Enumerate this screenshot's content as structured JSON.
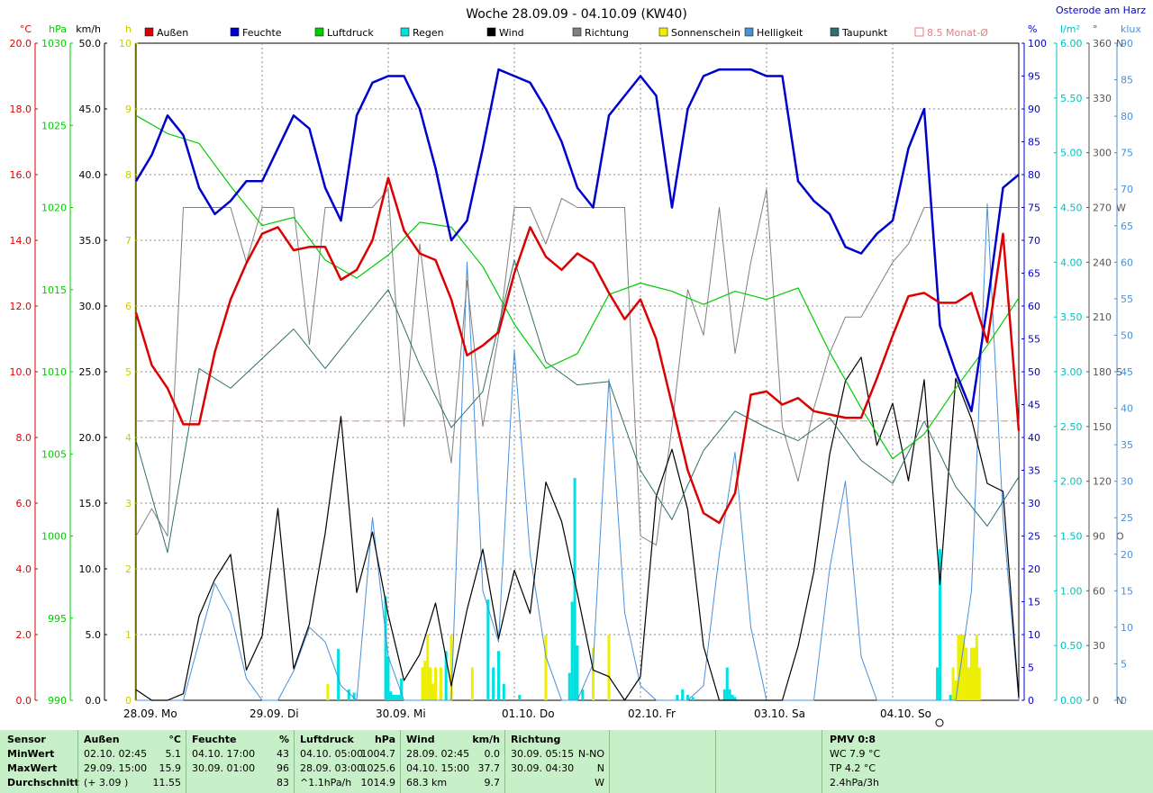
{
  "title": "Woche 28.09.09 - 04.10.09 (KW40)",
  "station": "Osterode am Harz",
  "legend": [
    {
      "label": "Außen",
      "color": "#dd0000"
    },
    {
      "label": "Feuchte",
      "color": "#0000cc"
    },
    {
      "label": "Luftdruck",
      "color": "#00cc00"
    },
    {
      "label": "Regen",
      "color": "#00e0e0"
    },
    {
      "label": "Wind",
      "color": "#000000"
    },
    {
      "label": "Richtung",
      "color": "#808080"
    },
    {
      "label": "Sonnenschein",
      "color": "#eeee00"
    },
    {
      "label": "Helligkeit",
      "color": "#4a90d8"
    },
    {
      "label": "Taupunkt",
      "color": "#2f6f6f"
    },
    {
      "label": "8.5 Monat-Ø",
      "color": "#e08080"
    }
  ],
  "units": {
    "temp": "°C",
    "press": "hPa",
    "wind": "km/h",
    "sun": "h",
    "hum": "%",
    "rain": "l/m²",
    "dir": "°",
    "lux": "klux"
  },
  "chart_data": {
    "type": "line",
    "days": [
      "28.09.  Mo",
      "29.09.  Di",
      "30.09.  Mi",
      "01.10.  Do",
      "02.10.  Fr",
      "03.10.  Sa",
      "04.10.  So"
    ],
    "axes": {
      "temp": {
        "min": 0,
        "max": 20,
        "ticks": [
          "0.0",
          "2.0",
          "4.0",
          "6.0",
          "8.0",
          "10.0",
          "12.0",
          "14.0",
          "16.0",
          "18.0",
          "20.0"
        ]
      },
      "press": {
        "min": 990,
        "max": 1030,
        "ticks": [
          "990",
          "995",
          "1000",
          "1005",
          "1010",
          "1015",
          "1020",
          "1025",
          "1030"
        ]
      },
      "wind": {
        "min": 0,
        "max": 50,
        "ticks": [
          "0.0",
          "5.0",
          "10.0",
          "15.0",
          "20.0",
          "25.0",
          "30.0",
          "35.0",
          "40.0",
          "45.0",
          "50.0"
        ]
      },
      "sun": {
        "min": 0,
        "max": 10,
        "ticks": [
          "0",
          "1",
          "2",
          "3",
          "4",
          "5",
          "6",
          "7",
          "8",
          "9",
          "10"
        ]
      },
      "hum": {
        "min": 0,
        "max": 100,
        "ticks": [
          "0",
          "5",
          "10",
          "15",
          "20",
          "25",
          "30",
          "35",
          "40",
          "45",
          "50",
          "55",
          "60",
          "65",
          "70",
          "75",
          "80",
          "85",
          "90",
          "95",
          "100"
        ]
      },
      "rain": {
        "min": 0,
        "max": 6,
        "ticks": [
          "0.00",
          "0.50",
          "1.00",
          "1.50",
          "2.00",
          "2.50",
          "3.00",
          "3.50",
          "4.00",
          "4.50",
          "5.00",
          "5.50",
          "6.00"
        ]
      },
      "dir": {
        "min": 0,
        "max": 360,
        "ticks": [
          "0",
          "30",
          "60",
          "90",
          "120",
          "150",
          "180",
          "210",
          "240",
          "270",
          "300",
          "330",
          "360"
        ],
        "labels": {
          "0": "N",
          "90": "O",
          "180": "S",
          "270": "W",
          "360": "N"
        }
      },
      "lux": {
        "min": 0,
        "max": 90,
        "ticks": [
          "0",
          "5",
          "10",
          "15",
          "20",
          "25",
          "30",
          "35",
          "40",
          "45",
          "50",
          "55",
          "60",
          "65",
          "70",
          "75",
          "80",
          "85",
          "90"
        ]
      }
    },
    "monthly_avg_temp": 8.5,
    "series": [
      {
        "name": "Außen",
        "axis": "temp",
        "t": [
          0,
          3,
          6,
          9,
          12,
          15,
          18,
          21,
          24,
          27,
          30,
          33,
          36,
          39,
          42,
          45,
          48,
          51,
          54,
          57,
          60,
          63,
          66,
          69,
          72,
          75,
          78,
          81,
          84,
          87,
          90,
          93,
          96,
          99,
          102,
          105,
          108,
          111,
          114,
          117,
          120,
          123,
          126,
          129,
          132,
          135,
          138,
          141,
          144,
          147,
          150,
          153,
          156,
          159,
          162,
          165,
          168
        ],
        "v": [
          11.8,
          10.2,
          9.5,
          8.4,
          8.4,
          10.6,
          12.2,
          13.3,
          14.2,
          14.4,
          13.7,
          13.8,
          13.8,
          12.8,
          13.1,
          14.0,
          15.9,
          14.3,
          13.6,
          13.4,
          12.2,
          10.5,
          10.8,
          11.2,
          13.0,
          14.4,
          13.5,
          13.1,
          13.6,
          13.3,
          12.4,
          11.6,
          12.2,
          11.0,
          9.0,
          7.0,
          5.7,
          5.4,
          6.3,
          9.3,
          9.4,
          9.0,
          9.2,
          8.8,
          8.7,
          8.6,
          8.6,
          9.8,
          11.1,
          12.3,
          12.4,
          12.1,
          12.1,
          12.4,
          10.9,
          14.2,
          8.2
        ]
      },
      {
        "name": "Feuchte",
        "axis": "hum",
        "t": [
          0,
          3,
          6,
          9,
          12,
          15,
          18,
          21,
          24,
          27,
          30,
          33,
          36,
          39,
          42,
          45,
          48,
          51,
          54,
          57,
          60,
          63,
          66,
          69,
          72,
          75,
          78,
          81,
          84,
          87,
          90,
          93,
          96,
          99,
          102,
          105,
          108,
          111,
          114,
          117,
          120,
          123,
          126,
          129,
          132,
          135,
          138,
          141,
          144,
          147,
          150,
          153,
          156,
          159,
          162,
          165,
          168
        ],
        "v": [
          79,
          83,
          89,
          86,
          78,
          74,
          76,
          79,
          79,
          84,
          89,
          87,
          78,
          73,
          89,
          94,
          95,
          95,
          90,
          81,
          70,
          73,
          84,
          96,
          95,
          94,
          90,
          85,
          78,
          75,
          89,
          92,
          95,
          92,
          75,
          90,
          95,
          96,
          96,
          96,
          95,
          95,
          79,
          76,
          74,
          69,
          68,
          71,
          73,
          84,
          90,
          57,
          50,
          44,
          60,
          78,
          80
        ]
      },
      {
        "name": "Luftdruck",
        "axis": "press",
        "t": [
          0,
          6,
          12,
          18,
          24,
          30,
          36,
          42,
          48,
          54,
          60,
          66,
          72,
          78,
          84,
          90,
          96,
          102,
          108,
          114,
          120,
          126,
          132,
          138,
          144,
          150,
          156,
          162,
          168
        ],
        "v": [
          1025.6,
          1024.5,
          1023.9,
          1021.3,
          1018.9,
          1019.4,
          1016.8,
          1015.7,
          1017.1,
          1019.1,
          1018.8,
          1016.4,
          1012.9,
          1010.2,
          1011.1,
          1014.7,
          1015.4,
          1014.9,
          1014.1,
          1014.9,
          1014.4,
          1015.1,
          1011.2,
          1007.8,
          1004.7,
          1006.2,
          1009.0,
          1011.6,
          1014.5
        ]
      },
      {
        "name": "Taupunkt",
        "axis": "temp",
        "t": [
          0,
          6,
          12,
          18,
          24,
          30,
          36,
          42,
          48,
          54,
          60,
          66,
          72,
          78,
          84,
          90,
          96,
          102,
          108,
          114,
          120,
          126,
          132,
          138,
          144,
          150,
          156,
          162,
          168
        ],
        "v": [
          7.9,
          4.5,
          10.1,
          9.5,
          10.4,
          11.3,
          10.1,
          11.3,
          12.5,
          10.2,
          8.3,
          9.4,
          13.4,
          10.3,
          9.6,
          9.7,
          7.0,
          5.5,
          7.6,
          8.8,
          8.3,
          7.9,
          8.6,
          7.3,
          6.6,
          8.5,
          6.5,
          5.3,
          6.8
        ]
      },
      {
        "name": "Wind",
        "axis": "wind",
        "t": [
          0,
          3,
          6,
          9,
          12,
          15,
          18,
          21,
          24,
          27,
          30,
          33,
          36,
          39,
          42,
          45,
          48,
          51,
          54,
          57,
          60,
          63,
          66,
          69,
          72,
          75,
          78,
          81,
          84,
          87,
          90,
          93,
          96,
          99,
          102,
          105,
          108,
          111,
          114,
          117,
          120,
          123,
          126,
          129,
          132,
          135,
          138,
          141,
          144,
          147,
          150,
          153,
          156,
          159,
          162,
          165,
          168
        ],
        "v": [
          0.8,
          0.0,
          0.0,
          0.5,
          6.4,
          9.2,
          11.1,
          2.3,
          4.9,
          14.6,
          2.4,
          5.8,
          12.7,
          21.6,
          8.2,
          12.8,
          6.5,
          1.5,
          3.5,
          7.4,
          1.1,
          6.9,
          11.5,
          4.7,
          9.9,
          6.6,
          16.6,
          13.6,
          8.1,
          2.3,
          1.8,
          0.0,
          1.8,
          15.5,
          19.1,
          14.5,
          4.1,
          0.0,
          0.0,
          0.0,
          0.0,
          0.0,
          4.1,
          9.8,
          18.7,
          24.3,
          26.1,
          19.4,
          22.6,
          16.7,
          24.4,
          8.8,
          24.5,
          21.4,
          16.5,
          15.9,
          0.2
        ]
      },
      {
        "name": "Richtung",
        "axis": "dir",
        "t": [
          0,
          3,
          6,
          9,
          12,
          15,
          18,
          21,
          24,
          27,
          30,
          33,
          36,
          39,
          42,
          45,
          48,
          51,
          54,
          57,
          60,
          63,
          66,
          69,
          72,
          75,
          78,
          81,
          84,
          87,
          90,
          93,
          96,
          99,
          102,
          105,
          108,
          111,
          114,
          117,
          120,
          123,
          126,
          129,
          132,
          135,
          138,
          141,
          144,
          147,
          150,
          153,
          156,
          159,
          162,
          165,
          168
        ],
        "v": [
          90,
          105,
          90,
          270,
          270,
          270,
          270,
          240,
          270,
          270,
          270,
          195,
          270,
          270,
          270,
          270,
          280,
          150,
          250,
          180,
          130,
          230,
          150,
          200,
          270,
          270,
          250,
          275,
          270,
          270,
          270,
          270,
          90,
          85,
          150,
          225,
          200,
          270,
          190,
          240,
          280,
          150,
          120,
          160,
          190,
          210,
          210,
          225,
          240,
          250,
          270,
          270,
          270,
          270,
          270,
          270,
          270
        ]
      },
      {
        "name": "Helligkeit",
        "axis": "lux",
        "t": [
          0,
          3,
          6,
          9,
          12,
          15,
          18,
          21,
          24,
          27,
          30,
          33,
          36,
          39,
          42,
          45,
          48,
          51,
          54,
          57,
          60,
          63,
          66,
          69,
          72,
          75,
          78,
          81,
          84,
          87,
          90,
          93,
          96,
          99,
          102,
          105,
          108,
          111,
          114,
          117,
          120,
          123,
          126,
          129,
          132,
          135,
          138,
          141,
          144,
          147,
          150,
          153,
          156,
          159,
          162,
          165,
          168
        ],
        "v": [
          0,
          0,
          0,
          0,
          8,
          16,
          12,
          3,
          0,
          0,
          4,
          10,
          8,
          2,
          0,
          25,
          6,
          0,
          0,
          0,
          0,
          60,
          15,
          8,
          48,
          20,
          6,
          0,
          0,
          5,
          44,
          12,
          2,
          0,
          0,
          0,
          2,
          20,
          34,
          10,
          0,
          0,
          0,
          0,
          18,
          30,
          6,
          0,
          0,
          0,
          0,
          0,
          0,
          15,
          68,
          25,
          0
        ]
      }
    ],
    "bars": [
      {
        "name": "Regen",
        "axis": "rain",
        "t": [
          38.5,
          40.5,
          41.5,
          47.5,
          48,
          48.5,
          49,
          49.5,
          50,
          50.5,
          56,
          56.5,
          58,
          59,
          67,
          68,
          69,
          70,
          73,
          82.5,
          83,
          83.5,
          84,
          85,
          103,
          104,
          105,
          106,
          112,
          112.5,
          113,
          113.5,
          114,
          152.5,
          153,
          155,
          156
        ],
        "v": [
          0.47,
          0.1,
          0.07,
          0.95,
          0.4,
          0.08,
          0.05,
          0.05,
          0.05,
          0.2,
          0.28,
          0.15,
          0.08,
          0.45,
          0.92,
          0.3,
          0.45,
          0.15,
          0.05,
          0.25,
          0.9,
          2.03,
          0.5,
          0.1,
          0.05,
          0.1,
          0.05,
          0.03,
          0.1,
          0.3,
          0.1,
          0.05,
          0.03,
          0.3,
          1.38,
          0.05,
          0.05
        ]
      },
      {
        "name": "Sonnenschein",
        "axis": "sun",
        "t": [
          36.5,
          54.5,
          55,
          55.5,
          56,
          56.5,
          57,
          58,
          60,
          64,
          78,
          87,
          90,
          155.5,
          156,
          156.5,
          157,
          157.5,
          158,
          158.5,
          159,
          159.5,
          160,
          160.5
        ],
        "v": [
          0.25,
          0.5,
          0.6,
          1.0,
          0.5,
          0.25,
          0.5,
          0.5,
          1.0,
          0.5,
          1.0,
          0.8,
          1.0,
          0.5,
          0.3,
          1.0,
          1.0,
          1.0,
          0.8,
          0.5,
          0.8,
          0.8,
          1.0,
          0.5
        ]
      }
    ]
  },
  "stats": {
    "sensor": {
      "h": "Sensor",
      "rows": [
        "MinWert",
        "MaxWert",
        "Durchschnitt"
      ]
    },
    "aussen": {
      "h": "Außen",
      "u": "°C",
      "rows": [
        {
          "d": "02.10.  02:45",
          "v": "5.1"
        },
        {
          "d": "29.09.  15:00",
          "v": "15.9"
        },
        {
          "d": "(+ 3.09 )",
          "v": "11.55"
        }
      ]
    },
    "feuchte": {
      "h": "Feuchte",
      "u": "%",
      "rows": [
        {
          "d": "04.10.  17:00",
          "v": "43"
        },
        {
          "d": "30.09.  01:00",
          "v": "96"
        },
        {
          "d": "",
          "v": "83"
        }
      ]
    },
    "luftdruck": {
      "h": "Luftdruck",
      "u": "hPa",
      "rows": [
        {
          "d": "04.10.  05:00",
          "v": "1004.7"
        },
        {
          "d": "28.09.  03:00",
          "v": "1025.6"
        },
        {
          "d": "^1.1hPa/h",
          "v": "1014.9"
        }
      ]
    },
    "wind": {
      "h": "Wind",
      "u": "km/h",
      "rows": [
        {
          "d": "28.09.  02:45",
          "v": "0.0"
        },
        {
          "d": "04.10.  15:00",
          "v": "37.7"
        },
        {
          "d": "68.3 km",
          "v": "9.7"
        }
      ]
    },
    "richtung": {
      "h": "Richtung",
      "u": "",
      "rows": [
        {
          "d": "30.09.  05:15",
          "v": "N-NO"
        },
        {
          "d": "30.09.  04:30",
          "v": "N"
        },
        {
          "d": "",
          "v": "W"
        }
      ]
    },
    "pmv": {
      "h": "PMV 0:8",
      "rows": [
        "WC 7.9 °C",
        "TP 4.2 °C",
        "2.4hPa/3h"
      ]
    }
  }
}
